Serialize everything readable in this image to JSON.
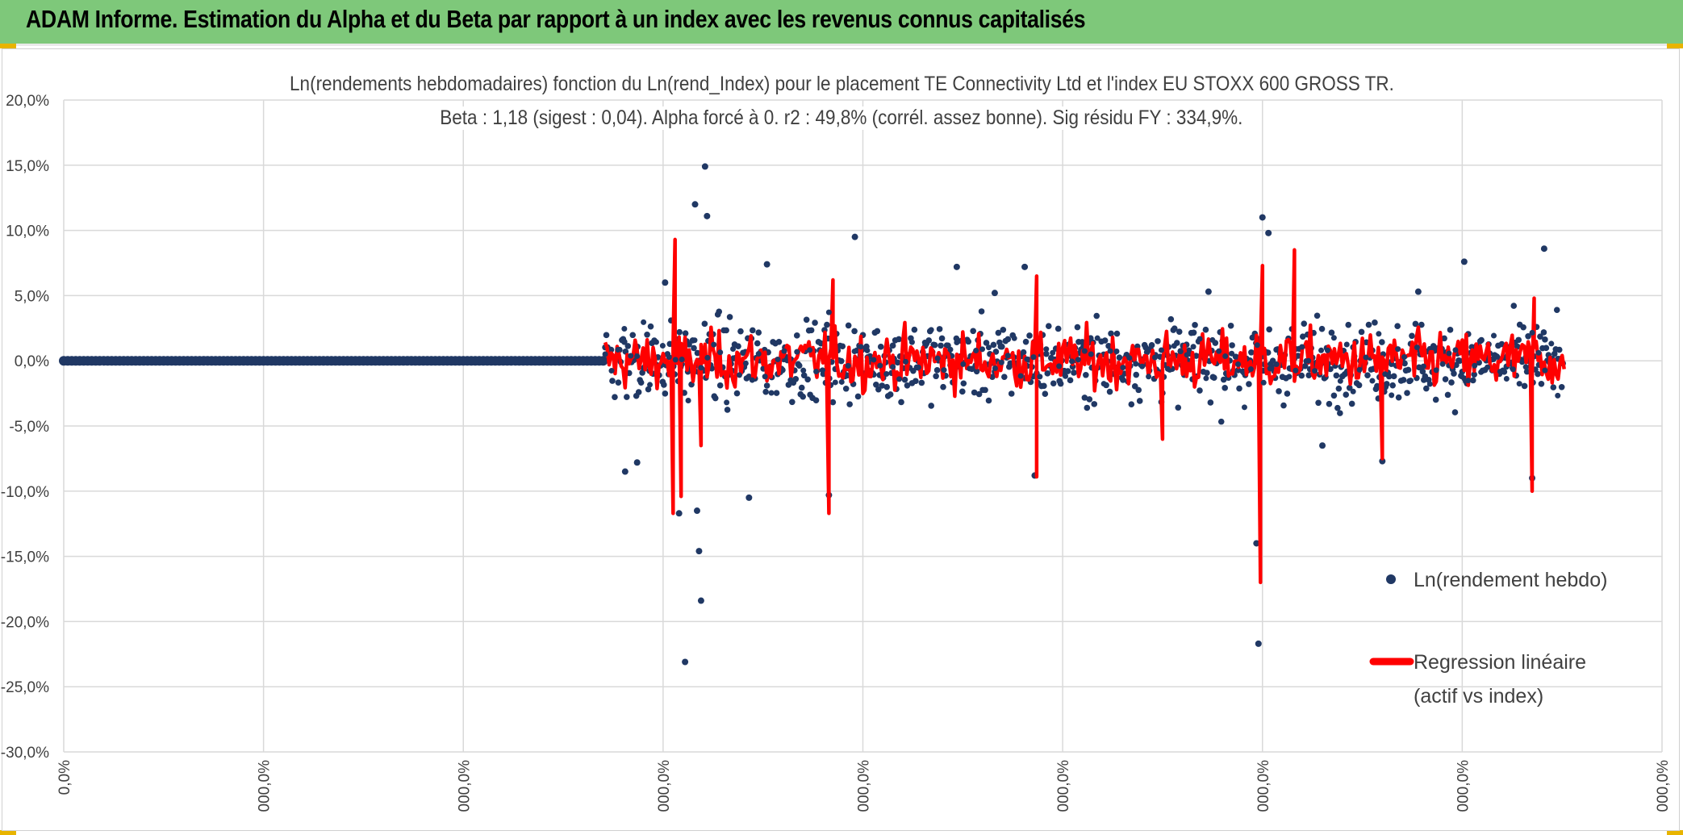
{
  "banner": {
    "title": "ADAM Informe. Estimation du Alpha et du Beta par rapport à un index avec les revenus connus capitalisés",
    "color": "#7ec87a"
  },
  "chart_data": {
    "type": "scatter",
    "title": "Ln(rendements hebdomadaires) fonction du Ln(rend_Index) pour le placement TE Connectivity Ltd et l'index EU STOXX 600 GROSS TR.",
    "subtitle": "Beta : 1,18 (sigest : 0,04). Alpha forcé à 0. r2 : 49,8% (corrél. assez bonne). Sig résidu FY : 334,9%.",
    "xlabel": "",
    "ylabel": "",
    "ylim": [
      -0.3,
      0.2
    ],
    "xlim": [
      0,
      800
    ],
    "y_ticks": [
      "20,0%",
      "15,0%",
      "10,0%",
      "5,0%",
      "0,0%",
      "-5,0%",
      "-10,0%",
      "-15,0%",
      "-20,0%",
      "-25,0%",
      "-30,0%"
    ],
    "x_ticks": [
      "0,0%",
      "000,0%",
      "000,0%",
      "000,0%",
      "000,0%",
      "000,0%",
      "000,0%",
      "000,0%",
      "000,0%"
    ],
    "grid": true,
    "legend_position": "right",
    "series": [
      {
        "name": "Ln(rendement hebdo)",
        "kind": "scatter",
        "color": "#203864",
        "flat_segment": {
          "x_start": 0,
          "x_end": 270,
          "y": 0.0
        },
        "x_range": [
          271,
          751
        ],
        "outliers": [
          {
            "x": 301,
            "y": 0.06
          },
          {
            "x": 316,
            "y": 0.12
          },
          {
            "x": 321,
            "y": 0.149
          },
          {
            "x": 322,
            "y": 0.111
          },
          {
            "x": 311,
            "y": -0.231
          },
          {
            "x": 319,
            "y": -0.184
          },
          {
            "x": 318,
            "y": -0.146
          },
          {
            "x": 317,
            "y": -0.115
          },
          {
            "x": 308,
            "y": -0.117
          },
          {
            "x": 396,
            "y": 0.095
          },
          {
            "x": 383,
            "y": -0.103
          },
          {
            "x": 343,
            "y": -0.105
          },
          {
            "x": 481,
            "y": 0.072
          },
          {
            "x": 447,
            "y": 0.072
          },
          {
            "x": 486,
            "y": -0.088
          },
          {
            "x": 600,
            "y": 0.11
          },
          {
            "x": 603,
            "y": 0.098
          },
          {
            "x": 598,
            "y": -0.217
          },
          {
            "x": 597,
            "y": -0.14
          },
          {
            "x": 630,
            "y": -0.065
          },
          {
            "x": 660,
            "y": -0.077
          },
          {
            "x": 701,
            "y": 0.076
          },
          {
            "x": 741,
            "y": 0.086
          },
          {
            "x": 735,
            "y": -0.09
          },
          {
            "x": 678,
            "y": 0.053
          },
          {
            "x": 573,
            "y": 0.053
          },
          {
            "x": 281,
            "y": -0.085
          },
          {
            "x": 287,
            "y": -0.078
          },
          {
            "x": 352,
            "y": 0.074
          },
          {
            "x": 466,
            "y": 0.052
          }
        ],
        "noise_sd": 0.025
      },
      {
        "name": "Regression linéaire (actif vs index)",
        "kind": "line",
        "color": "#ff0000",
        "beta": 1.18,
        "x_range": [
          271,
          751
        ],
        "spikes": [
          {
            "x": 306,
            "y": 0.093
          },
          {
            "x": 305,
            "y": -0.117
          },
          {
            "x": 309,
            "y": -0.104
          },
          {
            "x": 319,
            "y": -0.065
          },
          {
            "x": 385,
            "y": 0.062
          },
          {
            "x": 383,
            "y": -0.117
          },
          {
            "x": 487,
            "y": 0.065
          },
          {
            "x": 487,
            "y": -0.089
          },
          {
            "x": 599,
            "y": -0.17
          },
          {
            "x": 600,
            "y": 0.073
          },
          {
            "x": 616,
            "y": 0.085
          },
          {
            "x": 735,
            "y": -0.1
          },
          {
            "x": 736,
            "y": 0.048
          },
          {
            "x": 550,
            "y": -0.06
          },
          {
            "x": 660,
            "y": -0.075
          }
        ],
        "noise_sd": 0.018
      }
    ]
  }
}
